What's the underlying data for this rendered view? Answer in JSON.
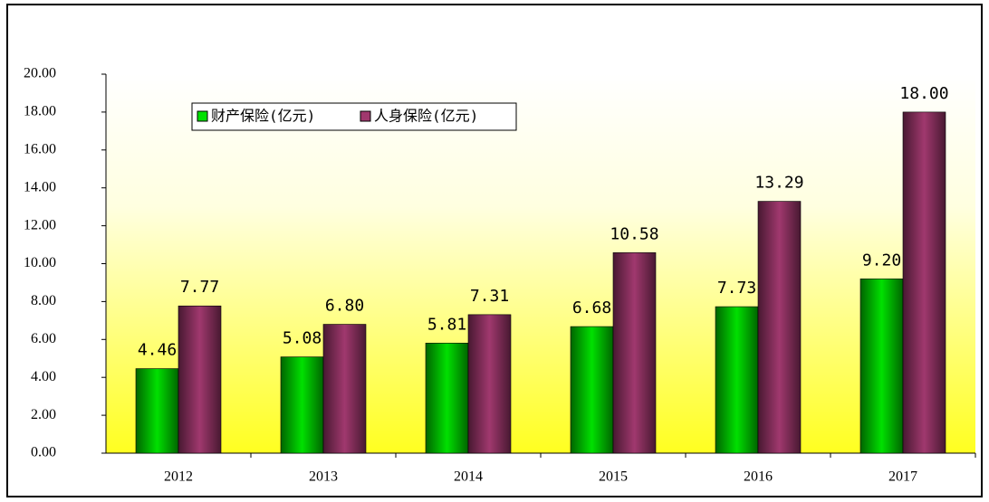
{
  "chart_data": {
    "type": "bar",
    "categories": [
      "2012",
      "2013",
      "2014",
      "2015",
      "2016",
      "2017"
    ],
    "series": [
      {
        "name": "财产保险(亿元)",
        "color": "#00e000",
        "values": [
          4.46,
          5.08,
          5.81,
          6.68,
          7.73,
          9.2
        ],
        "value_labels": [
          "4.46",
          "5.08",
          "5.81",
          "6.68",
          "7.73",
          "9.20"
        ]
      },
      {
        "name": "人身保险(亿元)",
        "color": "#a0386e",
        "values": [
          7.77,
          6.8,
          7.31,
          10.58,
          13.29,
          18.0
        ],
        "value_labels": [
          "7.77",
          "6.80",
          "7.31",
          "10.58",
          "13.29",
          "18.00"
        ]
      }
    ],
    "ylim": [
      0,
      20
    ],
    "yticks": [
      {
        "value": 0,
        "label": "0.00"
      },
      {
        "value": 2,
        "label": "2.00"
      },
      {
        "value": 4,
        "label": "4.00"
      },
      {
        "value": 6,
        "label": "6.00"
      },
      {
        "value": 8,
        "label": "8.00"
      },
      {
        "value": 10,
        "label": "10.00"
      },
      {
        "value": 12,
        "label": "12.00"
      },
      {
        "value": 14,
        "label": "14.00"
      },
      {
        "value": 16,
        "label": "16.00"
      },
      {
        "value": 18,
        "label": "18.00"
      },
      {
        "value": 20,
        "label": "20.00"
      }
    ],
    "legend": "upper left"
  }
}
